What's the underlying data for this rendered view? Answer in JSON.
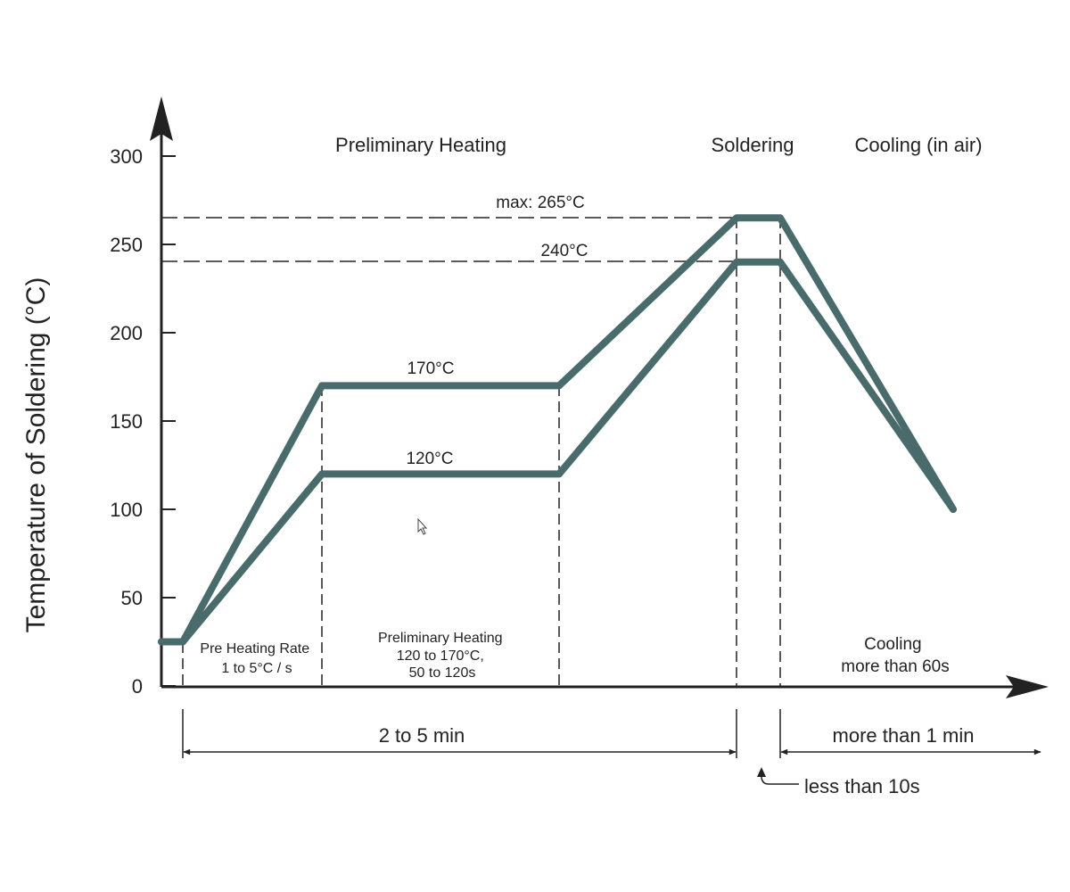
{
  "chart_data": {
    "type": "line",
    "ylabel": "Temperature of Soldering (°C)",
    "ylim": [
      0,
      300
    ],
    "y_ticks": [
      "0",
      "50",
      "100",
      "150",
      "200",
      "250",
      "300"
    ],
    "grid": false,
    "series": [
      {
        "color": "#4a6b6b",
        "points": [
          {
            "t": 0.0,
            "y": 25
          },
          {
            "t": 0.1,
            "y": 25
          },
          {
            "t": 0.5,
            "y": 170
          },
          {
            "t": 1.1,
            "y": 170
          },
          {
            "t": 1.55,
            "y": 265
          },
          {
            "t": 1.66,
            "y": 265
          },
          {
            "t": 2.11,
            "y": 100
          }
        ]
      },
      {
        "color": "#4a6b6b",
        "points": [
          {
            "t": 0.0,
            "y": 25
          },
          {
            "t": 0.1,
            "y": 25
          },
          {
            "t": 0.5,
            "y": 120
          },
          {
            "t": 1.1,
            "y": 120
          },
          {
            "t": 1.55,
            "y": 240
          },
          {
            "t": 1.66,
            "y": 240
          },
          {
            "t": 2.11,
            "y": 100
          }
        ]
      }
    ],
    "phase_headers": [
      "Preliminary Heating",
      "Soldering",
      "Cooling (in air)"
    ],
    "temperature_labels": {
      "max": "max: 265°C",
      "peak": "240°C",
      "upper_hold": "170°C",
      "lower_hold": "120°C"
    },
    "region_labels": {
      "pre_heating": [
        "Pre Heating Rate",
        "1 to 5°C / s"
      ],
      "preliminary": [
        "Preliminary Heating",
        "120 to 170°C,",
        "50 to 120s"
      ],
      "cooling": [
        "Cooling",
        "more than 60s"
      ]
    },
    "time_spans": {
      "total_heating": "2 to 5 min",
      "soldering": "less than 10s",
      "cooling": "more than 1 min"
    }
  }
}
